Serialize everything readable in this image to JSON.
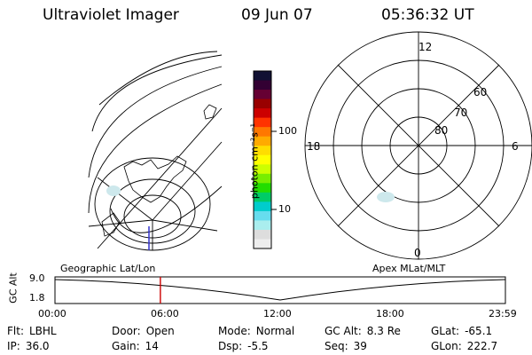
{
  "header": {
    "instrument": "Ultraviolet Imager",
    "date": "09 Jun 07",
    "time": "05:36:32 UT"
  },
  "colorbar": {
    "unit_label": "photon cm⁻²s⁻¹",
    "ticks": [
      "100",
      "10"
    ],
    "colors": [
      "#111133",
      "#330033",
      "#660033",
      "#990000",
      "#cc0000",
      "#ff3300",
      "#ff7700",
      "#ffaa00",
      "#ffdd00",
      "#ffff00",
      "#ccff00",
      "#77ee00",
      "#22dd00",
      "#00cc66",
      "#00cccc",
      "#66ddee",
      "#aaeeee",
      "#dddddd",
      "#eeeeee"
    ]
  },
  "polar_plot": {
    "mlt_labels": {
      "top": "12",
      "left": "18",
      "right": "6",
      "bottom": "0"
    },
    "lat_labels": [
      "60",
      "70",
      "80"
    ]
  },
  "timeline": {
    "y_axis_label": "GC Alt",
    "y_ticks": [
      "9.0",
      "1.8"
    ],
    "left_caption": "Geographic Lat/Lon",
    "right_caption": "Apex MLat/MLT",
    "x_ticks": [
      "00:00",
      "06:00",
      "12:00",
      "18:00",
      "23:59"
    ],
    "cursor_time_fraction": 0.234,
    "cursor_color": "#cc0000"
  },
  "info": [
    [
      {
        "k": "Flt:",
        "v": "LBHL"
      },
      {
        "k": "Door:",
        "v": "Open"
      },
      {
        "k": "Mode:",
        "v": "Normal"
      },
      {
        "k": "GC Alt:",
        "v": "8.3 Re"
      },
      {
        "k": "GLat:",
        "v": "-65.1"
      }
    ],
    [
      {
        "k": "IP:",
        "v": "36.0"
      },
      {
        "k": "Gain:",
        "v": "14"
      },
      {
        "k": "Dsp:",
        "v": "-5.5"
      },
      {
        "k": "Seq:",
        "v": "39"
      },
      {
        "k": "GLon:",
        "v": "222.7"
      }
    ]
  ]
}
